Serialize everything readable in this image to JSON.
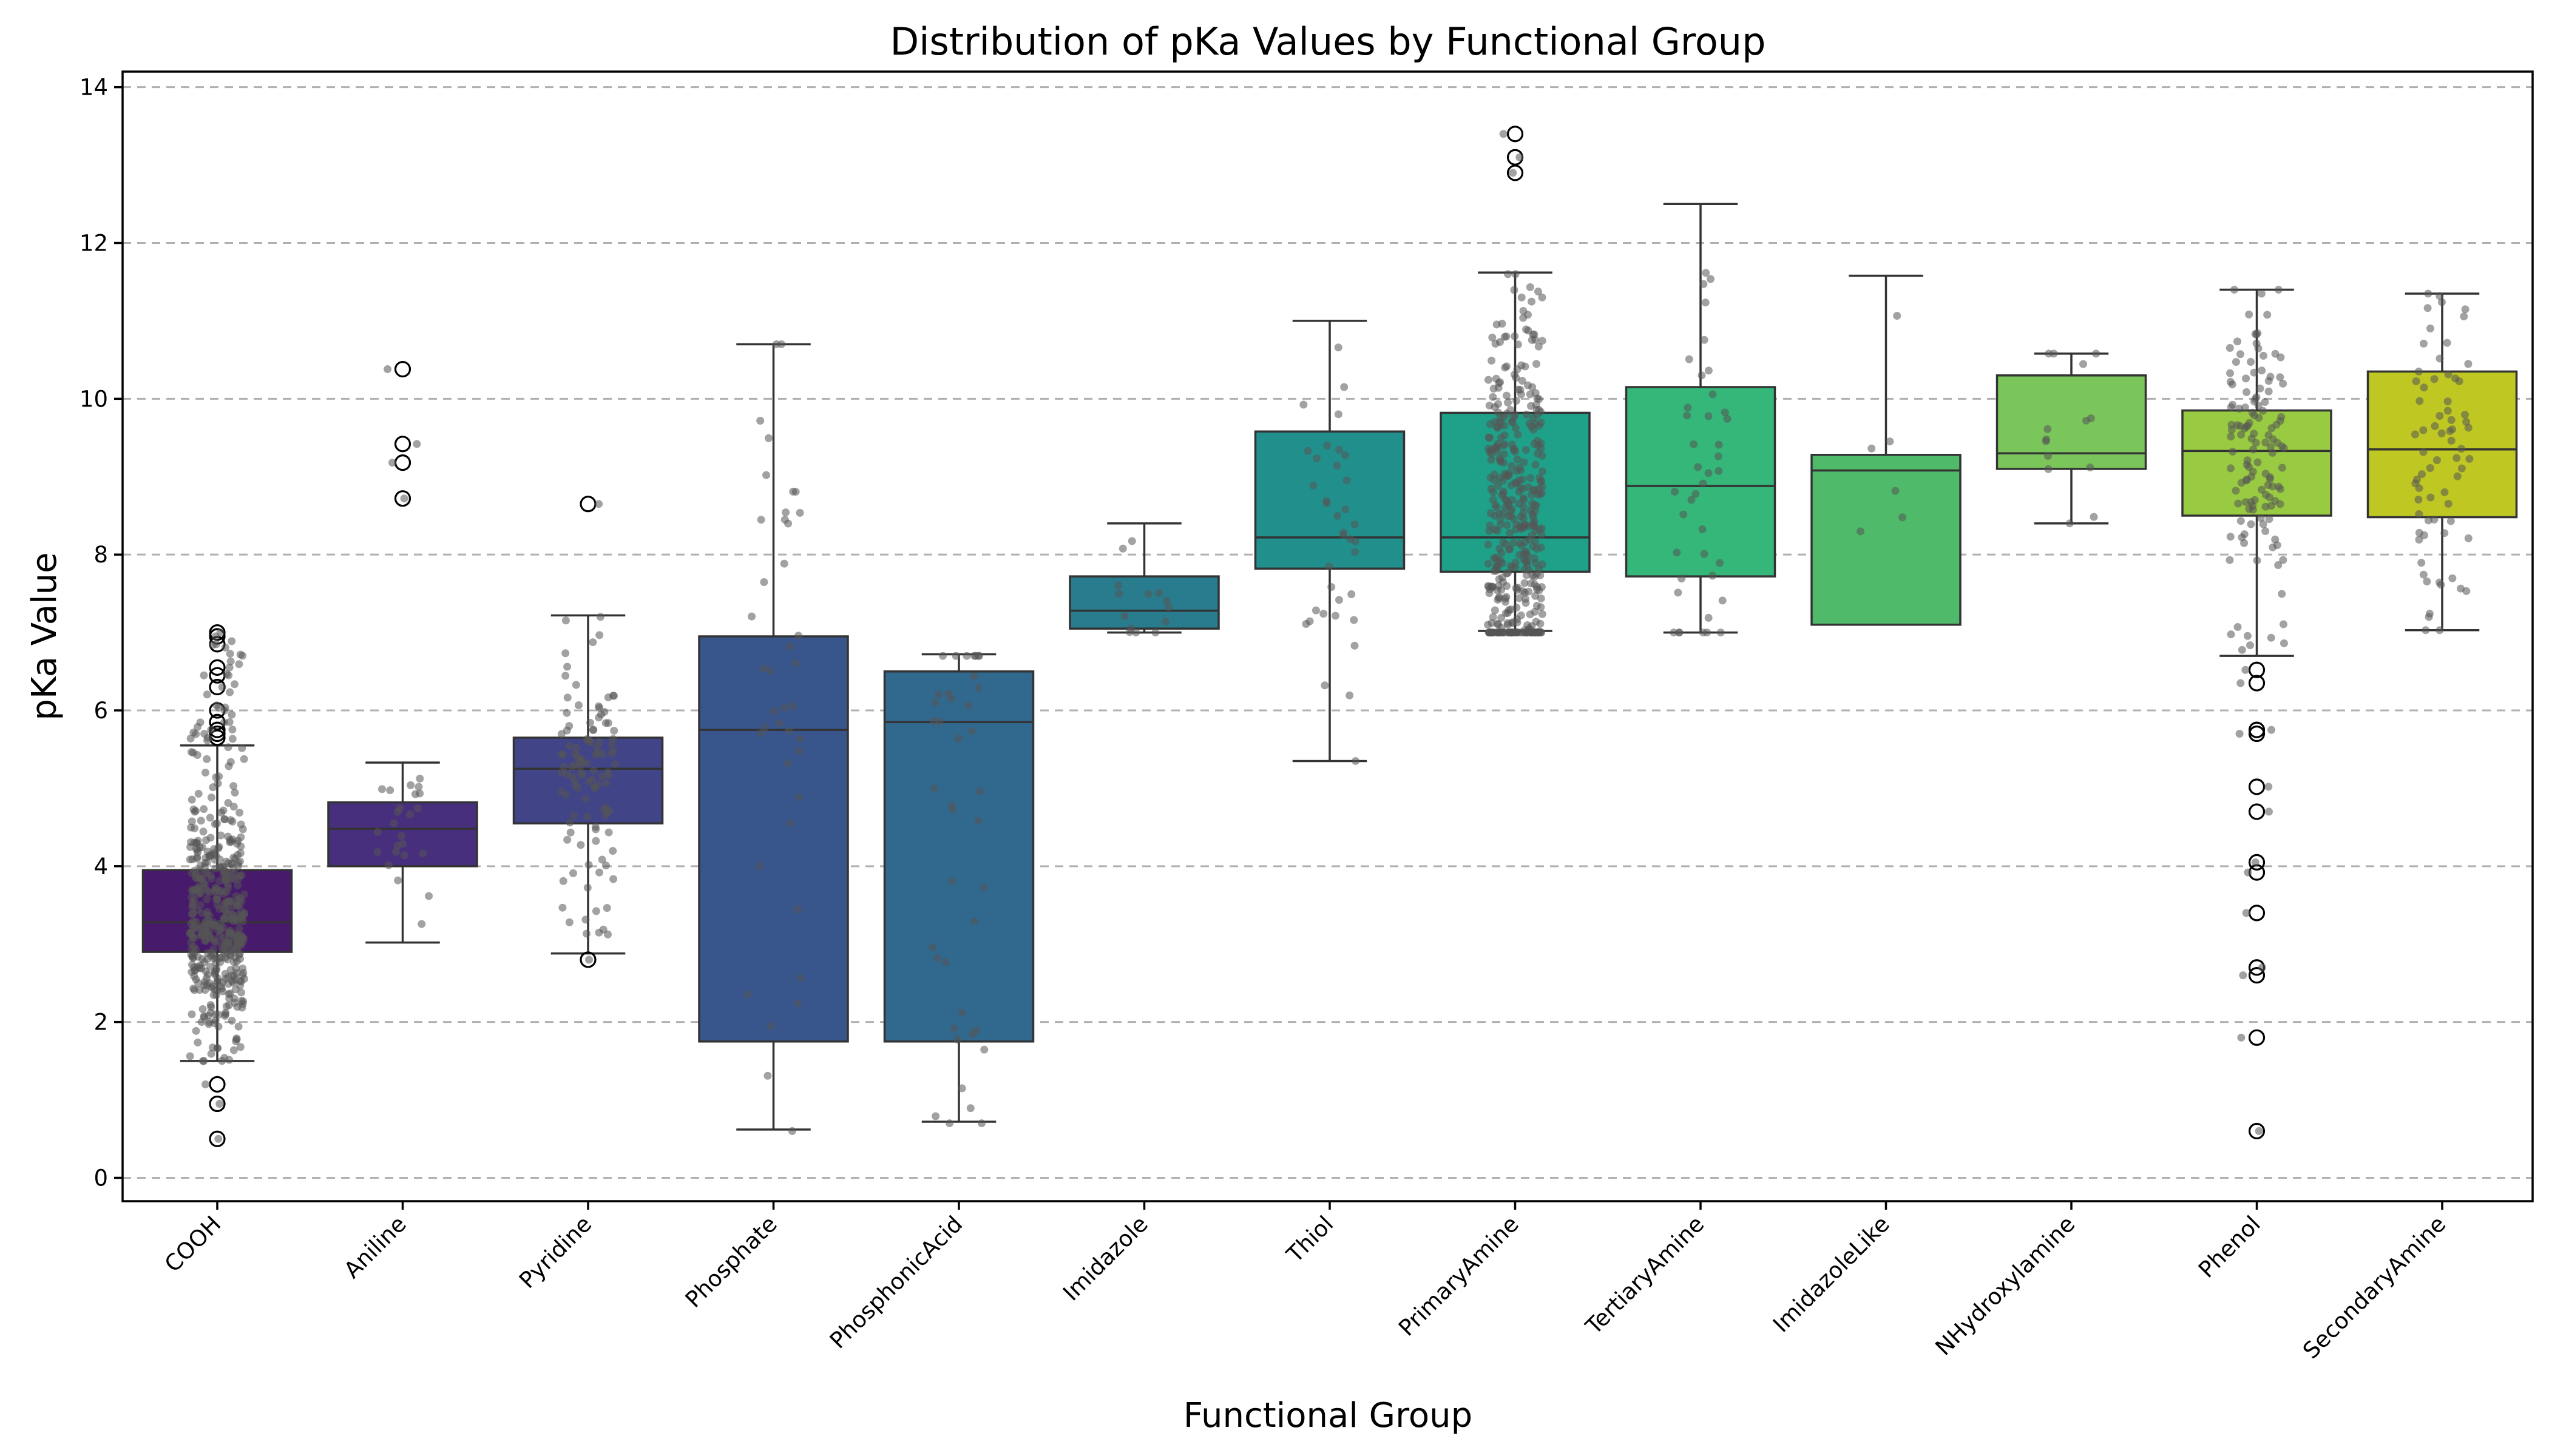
{
  "chart_data": {
    "type": "box",
    "title": "Distribution of pKa Values by Functional Group",
    "xlabel": "Functional Group",
    "ylabel": "pKa Value",
    "ylim": [
      -0.3,
      14.2
    ],
    "yticks": [
      0,
      2,
      4,
      6,
      8,
      10,
      12,
      14
    ],
    "grid": "y-dashed",
    "colormap": "viridis",
    "groups": [
      {
        "name": "COOH",
        "color": "#481a6c",
        "q1": 2.9,
        "median": 3.28,
        "q3": 3.95,
        "whisker_low": 1.5,
        "whisker_high": 5.55,
        "fliers": [
          0.5,
          0.95,
          1.2,
          5.65,
          5.7,
          5.75,
          5.85,
          6.0,
          6.3,
          6.45,
          6.55,
          6.85,
          6.95,
          7.0
        ],
        "n_points": 480,
        "points_range": [
          1.5,
          6.9
        ]
      },
      {
        "name": "Aniline",
        "color": "#472f7d",
        "q1": 4.0,
        "median": 4.48,
        "q3": 4.82,
        "whisker_low": 3.02,
        "whisker_high": 5.33,
        "fliers": [
          8.72,
          9.18,
          9.42,
          10.38
        ],
        "n_points": 24,
        "points_range": [
          3.0,
          5.3
        ]
      },
      {
        "name": "Pyridine",
        "color": "#414487",
        "q1": 4.55,
        "median": 5.25,
        "q3": 5.65,
        "whisker_low": 2.88,
        "whisker_high": 7.22,
        "fliers": [
          2.8,
          8.65
        ],
        "n_points": 110,
        "points_range": [
          2.8,
          7.2
        ]
      },
      {
        "name": "Phosphate",
        "color": "#39568c",
        "q1": 1.75,
        "median": 5.75,
        "q3": 6.95,
        "whisker_low": 0.62,
        "whisker_high": 10.7,
        "fliers": [],
        "n_points": 40,
        "points_range": [
          0.6,
          10.7
        ]
      },
      {
        "name": "PhosphonicAcid",
        "color": "#31688e",
        "q1": 1.75,
        "median": 5.85,
        "q3": 6.5,
        "whisker_low": 0.72,
        "whisker_high": 6.72,
        "fliers": [],
        "n_points": 40,
        "points_range": [
          0.7,
          6.7
        ]
      },
      {
        "name": "Imidazole",
        "color": "#287c8e",
        "q1": 7.05,
        "median": 7.28,
        "q3": 7.72,
        "whisker_low": 7.0,
        "whisker_high": 8.4,
        "fliers": [],
        "n_points": 14,
        "points_range": [
          7.0,
          8.4
        ]
      },
      {
        "name": "Thiol",
        "color": "#21908d",
        "q1": 7.82,
        "median": 8.22,
        "q3": 9.58,
        "whisker_low": 5.35,
        "whisker_high": 11.0,
        "fliers": [],
        "n_points": 36,
        "points_range": [
          5.35,
          11.0
        ]
      },
      {
        "name": "PrimaryAmine",
        "color": "#1fa088",
        "q1": 7.78,
        "median": 8.22,
        "q3": 9.82,
        "whisker_low": 7.02,
        "whisker_high": 11.62,
        "fliers": [
          12.9,
          13.1,
          13.4
        ],
        "n_points": 420,
        "points_range": [
          7.0,
          11.6
        ]
      },
      {
        "name": "TertiaryAmine",
        "color": "#35b779",
        "q1": 7.72,
        "median": 8.88,
        "q3": 10.15,
        "whisker_low": 7.0,
        "whisker_high": 12.5,
        "fliers": [],
        "n_points": 40,
        "points_range": [
          7.0,
          12.5
        ]
      },
      {
        "name": "ImidazoleLike",
        "color": "#4fba6a",
        "q1": 7.1,
        "median": 9.08,
        "q3": 9.28,
        "whisker_low": 7.1,
        "whisker_high": 11.58,
        "fliers": [],
        "n_points": 6,
        "points_range": [
          7.1,
          11.58
        ]
      },
      {
        "name": "NHydroxylamine",
        "color": "#7ac65b",
        "q1": 9.1,
        "median": 9.3,
        "q3": 10.3,
        "whisker_low": 8.4,
        "whisker_high": 10.58,
        "fliers": [],
        "n_points": 14,
        "points_range": [
          8.4,
          10.58
        ]
      },
      {
        "name": "Phenol",
        "color": "#98cb42",
        "q1": 8.5,
        "median": 9.33,
        "q3": 9.85,
        "whisker_low": 6.7,
        "whisker_high": 11.4,
        "fliers": [
          0.6,
          1.8,
          2.6,
          2.7,
          3.4,
          3.92,
          4.05,
          4.7,
          5.02,
          5.7,
          5.75,
          6.35,
          6.52
        ],
        "n_points": 130,
        "points_range": [
          6.7,
          11.4
        ]
      },
      {
        "name": "SecondaryAmine",
        "color": "#bfc723",
        "q1": 8.48,
        "median": 9.35,
        "q3": 10.35,
        "whisker_low": 7.03,
        "whisker_high": 11.35,
        "fliers": [],
        "n_points": 70,
        "points_range": [
          7.03,
          11.35
        ]
      }
    ]
  }
}
